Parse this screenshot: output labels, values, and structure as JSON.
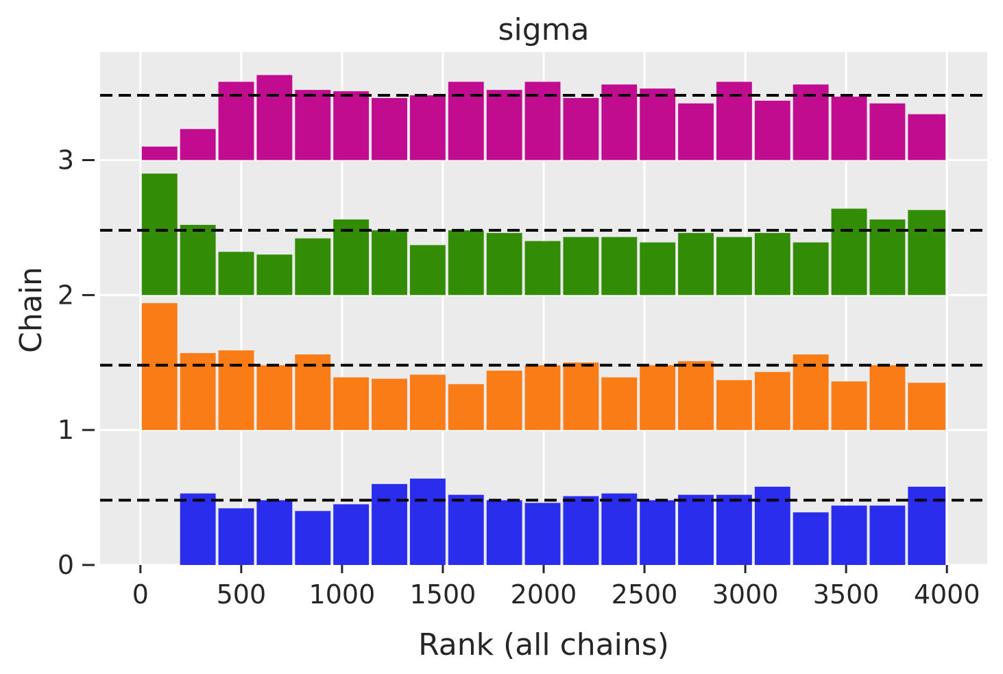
{
  "chart_data": {
    "type": "bar",
    "title": "sigma",
    "xlabel": "Rank (all chains)",
    "ylabel": "Chain",
    "xlim": [
      -200,
      4200
    ],
    "ylim": [
      0,
      3.8
    ],
    "grid": true,
    "background": "#ebebeb",
    "xticks": [
      0,
      500,
      1000,
      1500,
      2000,
      2500,
      3000,
      3500,
      4000
    ],
    "yticks": [
      0,
      1,
      2,
      3
    ],
    "bin_edges": [
      0,
      190,
      380,
      570,
      760,
      950,
      1140,
      1330,
      1520,
      1710,
      1900,
      2090,
      2280,
      2470,
      2660,
      2850,
      3040,
      3230,
      3420,
      3610,
      3800,
      4000
    ],
    "series": [
      {
        "chain": 0,
        "color": "#2a2eec",
        "offset": 0,
        "uniform_level": 0.48,
        "values": [
          0.0,
          0.53,
          0.42,
          0.48,
          0.4,
          0.45,
          0.6,
          0.64,
          0.52,
          0.48,
          0.46,
          0.51,
          0.53,
          0.48,
          0.52,
          0.52,
          0.58,
          0.39,
          0.44,
          0.44,
          0.58
        ]
      },
      {
        "chain": 1,
        "color": "#fa7c17",
        "offset": 1,
        "uniform_level": 0.48,
        "values": [
          0.94,
          0.57,
          0.59,
          0.48,
          0.56,
          0.39,
          0.38,
          0.41,
          0.34,
          0.44,
          0.48,
          0.5,
          0.39,
          0.48,
          0.51,
          0.37,
          0.43,
          0.56,
          0.36,
          0.48,
          0.35
        ]
      },
      {
        "chain": 2,
        "color": "#328c06",
        "offset": 2,
        "uniform_level": 0.48,
        "values": [
          0.9,
          0.52,
          0.32,
          0.3,
          0.42,
          0.56,
          0.48,
          0.37,
          0.48,
          0.46,
          0.4,
          0.43,
          0.43,
          0.39,
          0.46,
          0.43,
          0.46,
          0.39,
          0.64,
          0.56,
          0.63
        ]
      },
      {
        "chain": 3,
        "color": "#c10c90",
        "offset": 3,
        "uniform_level": 0.48,
        "values": [
          0.1,
          0.23,
          0.58,
          0.63,
          0.52,
          0.51,
          0.46,
          0.48,
          0.58,
          0.52,
          0.58,
          0.46,
          0.56,
          0.53,
          0.42,
          0.58,
          0.44,
          0.56,
          0.47,
          0.42,
          0.34
        ]
      }
    ]
  }
}
